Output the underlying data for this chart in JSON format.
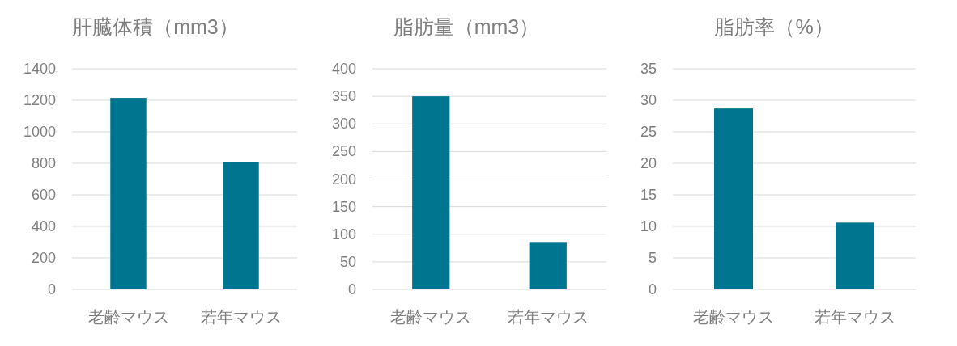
{
  "chart_data": [
    {
      "type": "bar",
      "title": "肝臓体積（mm3）",
      "categories": [
        "老齢マウス",
        "若年マウス"
      ],
      "values": [
        1215,
        810
      ],
      "color": "#00758f",
      "ylim": [
        0,
        1400
      ],
      "yticks": [
        0,
        200,
        400,
        600,
        800,
        1000,
        1200,
        1400
      ],
      "grid": "y"
    },
    {
      "type": "bar",
      "title": "脂肪量（mm3）",
      "categories": [
        "老齢マウス",
        "若年マウス"
      ],
      "values": [
        350,
        86
      ],
      "color": "#00758f",
      "ylim": [
        0,
        400
      ],
      "yticks": [
        0,
        50,
        100,
        150,
        200,
        250,
        300,
        350,
        400
      ],
      "grid": "y"
    },
    {
      "type": "bar",
      "title": "脂肪率（%）",
      "categories": [
        "老齢マウス",
        "若年マウス"
      ],
      "values": [
        28.7,
        10.6
      ],
      "color": "#00758f",
      "ylim": [
        0,
        35
      ],
      "yticks": [
        0,
        5,
        10,
        15,
        20,
        25,
        30,
        35
      ],
      "grid": "y"
    }
  ]
}
